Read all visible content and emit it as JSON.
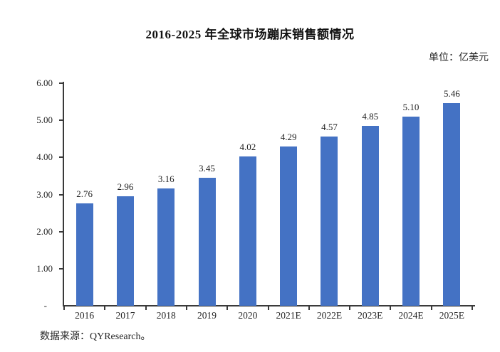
{
  "title": "2016-2025 年全球市场蹦床销售额情况",
  "unit_label": "单位：亿美元",
  "source_note": "数据来源：QYResearch。",
  "chart_data": {
    "type": "bar",
    "title": "2016-2025 年全球市场蹦床销售额情况",
    "unit": "亿美元",
    "categories": [
      "2016",
      "2017",
      "2018",
      "2019",
      "2020",
      "2021E",
      "2022E",
      "2023E",
      "2024E",
      "2025E"
    ],
    "values": [
      2.76,
      2.96,
      3.16,
      3.45,
      4.02,
      4.29,
      4.57,
      4.85,
      5.1,
      5.46
    ],
    "value_labels": [
      "2.76",
      "2.96",
      "3.16",
      "3.45",
      "4.02",
      "4.29",
      "4.57",
      "4.85",
      "5.10",
      "5.46"
    ],
    "xlabel": "",
    "ylabel": "",
    "ylim": [
      0,
      6
    ],
    "y_ticks": [
      {
        "value": 6,
        "label": "6.00"
      },
      {
        "value": 5,
        "label": "5.00"
      },
      {
        "value": 4,
        "label": "4.00"
      },
      {
        "value": 3,
        "label": "3.00"
      },
      {
        "value": 2,
        "label": "2.00"
      },
      {
        "value": 1,
        "label": "1.00"
      },
      {
        "value": 0,
        "label": "-"
      }
    ],
    "grid": false,
    "legend": "none",
    "bar_color": "#4472C4",
    "axis_color": "#3a3a3a",
    "source": "数据来源：QYResearch。"
  }
}
